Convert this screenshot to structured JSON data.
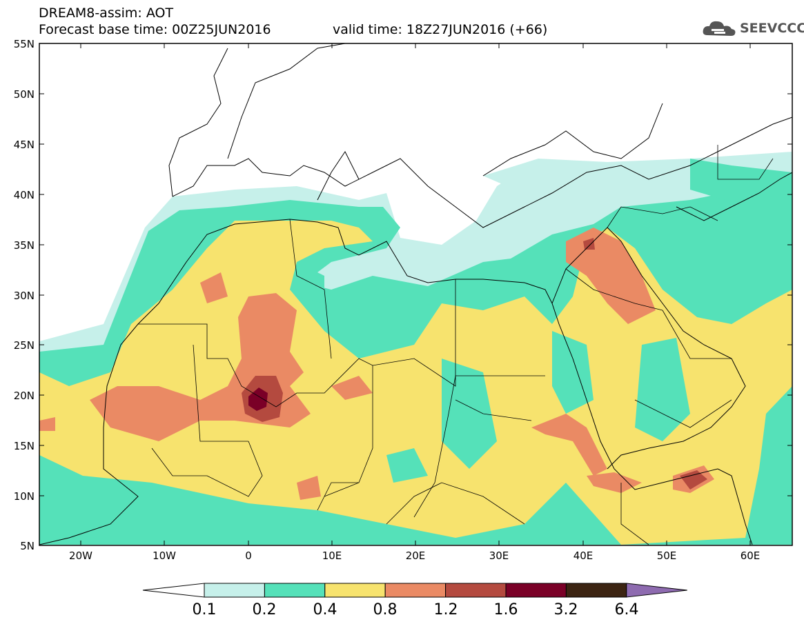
{
  "header": {
    "line1": "DREAM8-assim: AOT",
    "line2": "Forecast base time: 00Z25JUN2016",
    "valid": "valid time: 18Z27JUN2016 (+66)"
  },
  "logo": {
    "text": "SEEVCCC",
    "icon": "cloud-icon"
  },
  "axes": {
    "lon_labels": [
      "20W",
      "10W",
      "0",
      "10E",
      "20E",
      "30E",
      "40E",
      "50E",
      "60E"
    ],
    "lat_labels": [
      "55N",
      "50N",
      "45N",
      "40N",
      "35N",
      "30N",
      "25N",
      "20N",
      "15N",
      "10N",
      "5N"
    ],
    "lon_range": [
      -25,
      65
    ],
    "lat_range": [
      5,
      55
    ]
  },
  "colorbar": {
    "labels": [
      "0.1",
      "0.2",
      "0.4",
      "0.8",
      "1.2",
      "1.6",
      "3.2",
      "6.4"
    ],
    "colors": [
      "#ffffff",
      "#c6f0ea",
      "#55e1b9",
      "#f7e36e",
      "#ea8a64",
      "#b44a3f",
      "#7a0027",
      "#3c2412",
      "#8e6bb0"
    ]
  }
}
